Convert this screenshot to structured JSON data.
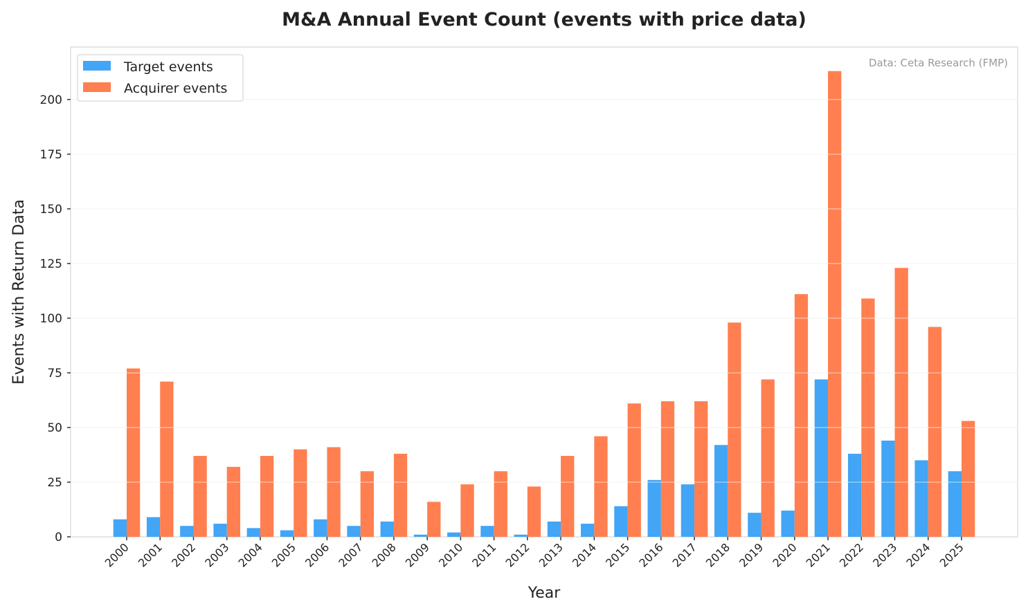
{
  "chart_data": {
    "type": "bar",
    "title": "M&A Annual Event Count (events with price data)",
    "xlabel": "Year",
    "ylabel": "Events with Return Data",
    "annotation": "Data: Ceta Research (FMP)",
    "categories": [
      "2000",
      "2001",
      "2002",
      "2003",
      "2004",
      "2005",
      "2006",
      "2007",
      "2008",
      "2009",
      "2010",
      "2011",
      "2012",
      "2013",
      "2014",
      "2015",
      "2016",
      "2017",
      "2018",
      "2019",
      "2020",
      "2021",
      "2022",
      "2023",
      "2024",
      "2025"
    ],
    "series": [
      {
        "name": "Target events",
        "color": "#42A5F5",
        "values": [
          8,
          9,
          5,
          6,
          4,
          3,
          8,
          5,
          7,
          1,
          2,
          5,
          1,
          7,
          6,
          14,
          26,
          24,
          42,
          11,
          12,
          72,
          38,
          44,
          35,
          30
        ]
      },
      {
        "name": "Acquirer events",
        "color": "#FF7F50",
        "values": [
          77,
          71,
          37,
          32,
          37,
          40,
          41,
          30,
          38,
          16,
          24,
          30,
          23,
          37,
          46,
          61,
          62,
          62,
          98,
          72,
          111,
          213,
          109,
          123,
          96,
          53
        ]
      }
    ],
    "yticks": [
      0,
      25,
      50,
      75,
      100,
      125,
      150,
      175,
      200
    ],
    "ylim": [
      0,
      224
    ],
    "grid": true,
    "legend": "top-left"
  }
}
